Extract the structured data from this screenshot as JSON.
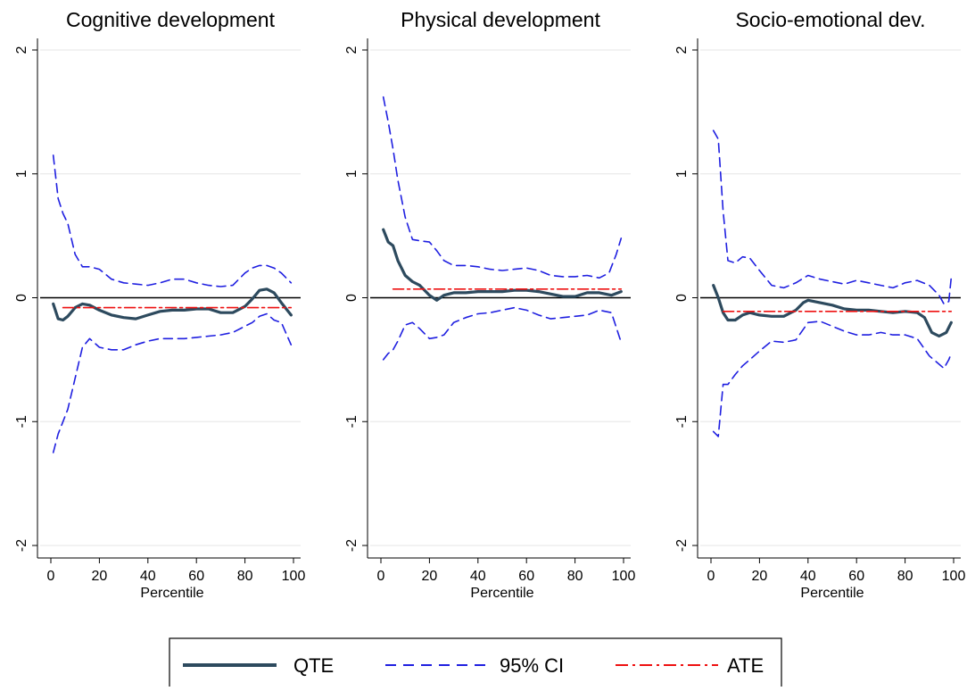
{
  "chart_data": [
    {
      "type": "line",
      "title": "Cognitive development",
      "xlabel": "Percentile",
      "ylabel": "",
      "xlim": [
        0,
        100
      ],
      "ylim": [
        -2,
        2
      ],
      "xticks": [
        "0",
        "20",
        "40",
        "60",
        "80",
        "100"
      ],
      "yticks": [
        "-2",
        "-1",
        "0",
        "1",
        "2"
      ],
      "grid": true,
      "series": [
        {
          "name": "QTE",
          "x": [
            1,
            3,
            5,
            7,
            10,
            13,
            16,
            20,
            25,
            30,
            35,
            40,
            45,
            50,
            55,
            60,
            65,
            70,
            75,
            80,
            83,
            86,
            89,
            92,
            95,
            99
          ],
          "y": [
            -0.05,
            -0.17,
            -0.18,
            -0.15,
            -0.08,
            -0.05,
            -0.06,
            -0.1,
            -0.14,
            -0.16,
            -0.17,
            -0.14,
            -0.11,
            -0.1,
            -0.1,
            -0.09,
            -0.09,
            -0.12,
            -0.12,
            -0.07,
            -0.01,
            0.06,
            0.07,
            0.04,
            -0.04,
            -0.14
          ]
        },
        {
          "name": "95% CI",
          "x": [
            1,
            3,
            5,
            7,
            10,
            13,
            16,
            20,
            25,
            30,
            35,
            40,
            45,
            50,
            55,
            60,
            65,
            70,
            75,
            80,
            83,
            86,
            89,
            92,
            95,
            99
          ],
          "y": [
            1.15,
            0.8,
            0.68,
            0.6,
            0.35,
            0.25,
            0.25,
            0.23,
            0.15,
            0.12,
            0.11,
            0.1,
            0.12,
            0.15,
            0.15,
            0.12,
            0.1,
            0.09,
            0.1,
            0.2,
            0.24,
            0.26,
            0.26,
            0.24,
            0.2,
            0.12
          ]
        },
        {
          "name": "",
          "x": [
            1,
            3,
            5,
            7,
            10,
            13,
            16,
            20,
            25,
            30,
            35,
            40,
            45,
            50,
            55,
            60,
            65,
            70,
            75,
            80,
            83,
            86,
            89,
            92,
            95,
            99
          ],
          "y": [
            -1.25,
            -1.1,
            -1.0,
            -0.9,
            -0.65,
            -0.4,
            -0.33,
            -0.4,
            -0.42,
            -0.42,
            -0.38,
            -0.35,
            -0.33,
            -0.33,
            -0.33,
            -0.32,
            -0.31,
            -0.3,
            -0.28,
            -0.23,
            -0.2,
            -0.15,
            -0.13,
            -0.18,
            -0.2,
            -0.38
          ]
        },
        {
          "name": "ATE",
          "x": [
            5,
            99
          ],
          "y": [
            -0.08,
            -0.08
          ]
        }
      ]
    },
    {
      "type": "line",
      "title": "Physical development",
      "xlabel": "Percentile",
      "ylabel": "",
      "xlim": [
        0,
        100
      ],
      "ylim": [
        -2,
        2
      ],
      "xticks": [
        "0",
        "20",
        "40",
        "60",
        "80",
        "100"
      ],
      "yticks": [
        "-2",
        "-1",
        "0",
        "1",
        "2"
      ],
      "grid": true,
      "series": [
        {
          "name": "QTE",
          "x": [
            1,
            3,
            5,
            7,
            10,
            13,
            16,
            20,
            23,
            26,
            30,
            35,
            40,
            45,
            50,
            55,
            60,
            65,
            70,
            75,
            80,
            85,
            90,
            95,
            99
          ],
          "y": [
            0.55,
            0.45,
            0.42,
            0.3,
            0.18,
            0.13,
            0.1,
            0.02,
            -0.02,
            0.02,
            0.04,
            0.04,
            0.05,
            0.05,
            0.05,
            0.06,
            0.06,
            0.05,
            0.03,
            0.01,
            0.01,
            0.04,
            0.04,
            0.02,
            0.05
          ]
        },
        {
          "name": "95% CI",
          "x": [
            1,
            3,
            5,
            7,
            10,
            13,
            16,
            20,
            23,
            26,
            30,
            35,
            40,
            45,
            50,
            55,
            60,
            65,
            70,
            75,
            80,
            85,
            90,
            94,
            97,
            99
          ],
          "y": [
            1.62,
            1.42,
            1.2,
            0.95,
            0.65,
            0.47,
            0.46,
            0.45,
            0.38,
            0.3,
            0.26,
            0.26,
            0.25,
            0.23,
            0.22,
            0.23,
            0.24,
            0.22,
            0.18,
            0.17,
            0.17,
            0.18,
            0.16,
            0.2,
            0.35,
            0.48
          ]
        },
        {
          "name": "",
          "x": [
            1,
            3,
            5,
            7,
            10,
            13,
            16,
            20,
            23,
            26,
            30,
            35,
            40,
            45,
            50,
            55,
            60,
            65,
            70,
            75,
            80,
            85,
            90,
            95,
            99
          ],
          "y": [
            -0.5,
            -0.45,
            -0.42,
            -0.35,
            -0.22,
            -0.2,
            -0.25,
            -0.33,
            -0.32,
            -0.3,
            -0.2,
            -0.16,
            -0.13,
            -0.12,
            -0.1,
            -0.08,
            -0.1,
            -0.14,
            -0.17,
            -0.16,
            -0.15,
            -0.14,
            -0.1,
            -0.12,
            -0.36
          ]
        },
        {
          "name": "ATE",
          "x": [
            5,
            99
          ],
          "y": [
            0.07,
            0.07
          ]
        }
      ]
    },
    {
      "type": "line",
      "title": "Socio-emotional dev.",
      "xlabel": "Percentile",
      "ylabel": "",
      "xlim": [
        0,
        100
      ],
      "ylim": [
        -2,
        2
      ],
      "xticks": [
        "0",
        "20",
        "40",
        "60",
        "80",
        "100"
      ],
      "yticks": [
        "-2",
        "-1",
        "0",
        "1",
        "2"
      ],
      "grid": true,
      "series": [
        {
          "name": "QTE",
          "x": [
            1,
            3,
            5,
            7,
            10,
            13,
            16,
            20,
            25,
            30,
            35,
            38,
            40,
            45,
            50,
            55,
            60,
            65,
            70,
            75,
            80,
            85,
            88,
            91,
            94,
            97,
            99
          ],
          "y": [
            0.1,
            0.0,
            -0.12,
            -0.18,
            -0.18,
            -0.14,
            -0.12,
            -0.14,
            -0.15,
            -0.15,
            -0.1,
            -0.04,
            -0.02,
            -0.04,
            -0.06,
            -0.09,
            -0.1,
            -0.1,
            -0.11,
            -0.12,
            -0.11,
            -0.12,
            -0.16,
            -0.28,
            -0.31,
            -0.28,
            -0.2
          ]
        },
        {
          "name": "95% CI",
          "x": [
            1,
            3,
            5,
            7,
            10,
            13,
            16,
            20,
            25,
            30,
            35,
            40,
            45,
            50,
            55,
            60,
            65,
            70,
            75,
            80,
            85,
            90,
            94,
            96,
            98,
            99
          ],
          "y": [
            1.35,
            1.28,
            0.7,
            0.3,
            0.28,
            0.33,
            0.32,
            0.22,
            0.1,
            0.08,
            0.12,
            0.18,
            0.15,
            0.13,
            0.11,
            0.14,
            0.12,
            0.1,
            0.08,
            0.12,
            0.14,
            0.1,
            0.02,
            -0.05,
            -0.03,
            0.16
          ]
        },
        {
          "name": "",
          "x": [
            1,
            3,
            5,
            7,
            10,
            13,
            16,
            20,
            25,
            30,
            35,
            40,
            45,
            50,
            55,
            60,
            65,
            70,
            75,
            80,
            85,
            90,
            93,
            96,
            98,
            99
          ],
          "y": [
            -1.08,
            -1.12,
            -0.7,
            -0.7,
            -0.62,
            -0.55,
            -0.5,
            -0.43,
            -0.35,
            -0.36,
            -0.34,
            -0.2,
            -0.19,
            -0.23,
            -0.27,
            -0.3,
            -0.3,
            -0.28,
            -0.3,
            -0.3,
            -0.33,
            -0.47,
            -0.52,
            -0.57,
            -0.5,
            -0.45
          ]
        },
        {
          "name": "ATE",
          "x": [
            5,
            99
          ],
          "y": [
            -0.11,
            -0.11
          ]
        }
      ]
    }
  ],
  "legend": {
    "placement": "bottom",
    "items": [
      {
        "label": "QTE",
        "style": "solid",
        "color": "#2d4a5e"
      },
      {
        "label": "95% CI",
        "style": "dash",
        "color": "#0000ff"
      },
      {
        "label": "ATE",
        "style": "dashdot",
        "color": "#ff0000"
      }
    ]
  },
  "colors": {
    "qte": "#2d4a5e",
    "ci": "#1f1fe0",
    "ate": "#ee1111",
    "grid": "#e6e6e6",
    "zero_line": "#000000"
  }
}
